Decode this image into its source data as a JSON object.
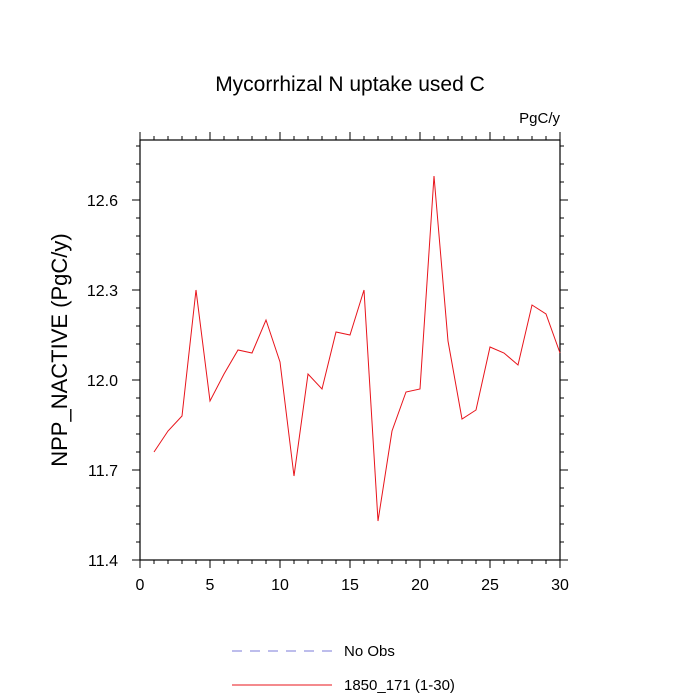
{
  "chart_data": {
    "type": "line",
    "title": "Mycorrhizal N uptake used C",
    "units": "PgC/y",
    "xlabel": "",
    "ylabel": "NPP_NACTIVE  (PgC/y)",
    "xlim": [
      0,
      30
    ],
    "ylim": [
      11.4,
      12.8
    ],
    "x_major_ticks": [
      0,
      5,
      10,
      15,
      20,
      25,
      30
    ],
    "x_tick_labels": [
      "0",
      "5",
      "10",
      "15",
      "20",
      "25",
      "30"
    ],
    "y_major_ticks": [
      11.4,
      11.7,
      12.0,
      12.3,
      12.6
    ],
    "y_tick_labels": [
      "11.4",
      "11.7",
      "12.0",
      "12.3",
      "12.6"
    ],
    "x": [
      1,
      2,
      3,
      4,
      5,
      6,
      7,
      8,
      9,
      10,
      11,
      12,
      13,
      14,
      15,
      16,
      17,
      18,
      19,
      20,
      21,
      22,
      23,
      24,
      25,
      26,
      27,
      28,
      29,
      30
    ],
    "series": [
      {
        "name": "1850_171 (1-30)",
        "color": "#e8141b",
        "style": "solid",
        "values": [
          11.76,
          11.83,
          11.88,
          12.3,
          11.93,
          12.02,
          12.1,
          12.09,
          12.2,
          12.06,
          11.68,
          12.02,
          11.97,
          12.16,
          12.15,
          12.3,
          11.53,
          11.83,
          11.96,
          11.97,
          12.68,
          12.13,
          11.87,
          11.9,
          12.11,
          12.09,
          12.05,
          12.25,
          12.22,
          12.09
        ]
      }
    ],
    "legend": [
      {
        "label": "No Obs",
        "color": "#7b7bd8",
        "style": "dashed"
      },
      {
        "label": "1850_171 (1-30)",
        "color": "#e8141b",
        "style": "solid"
      }
    ],
    "legend_placement": "bottom"
  }
}
